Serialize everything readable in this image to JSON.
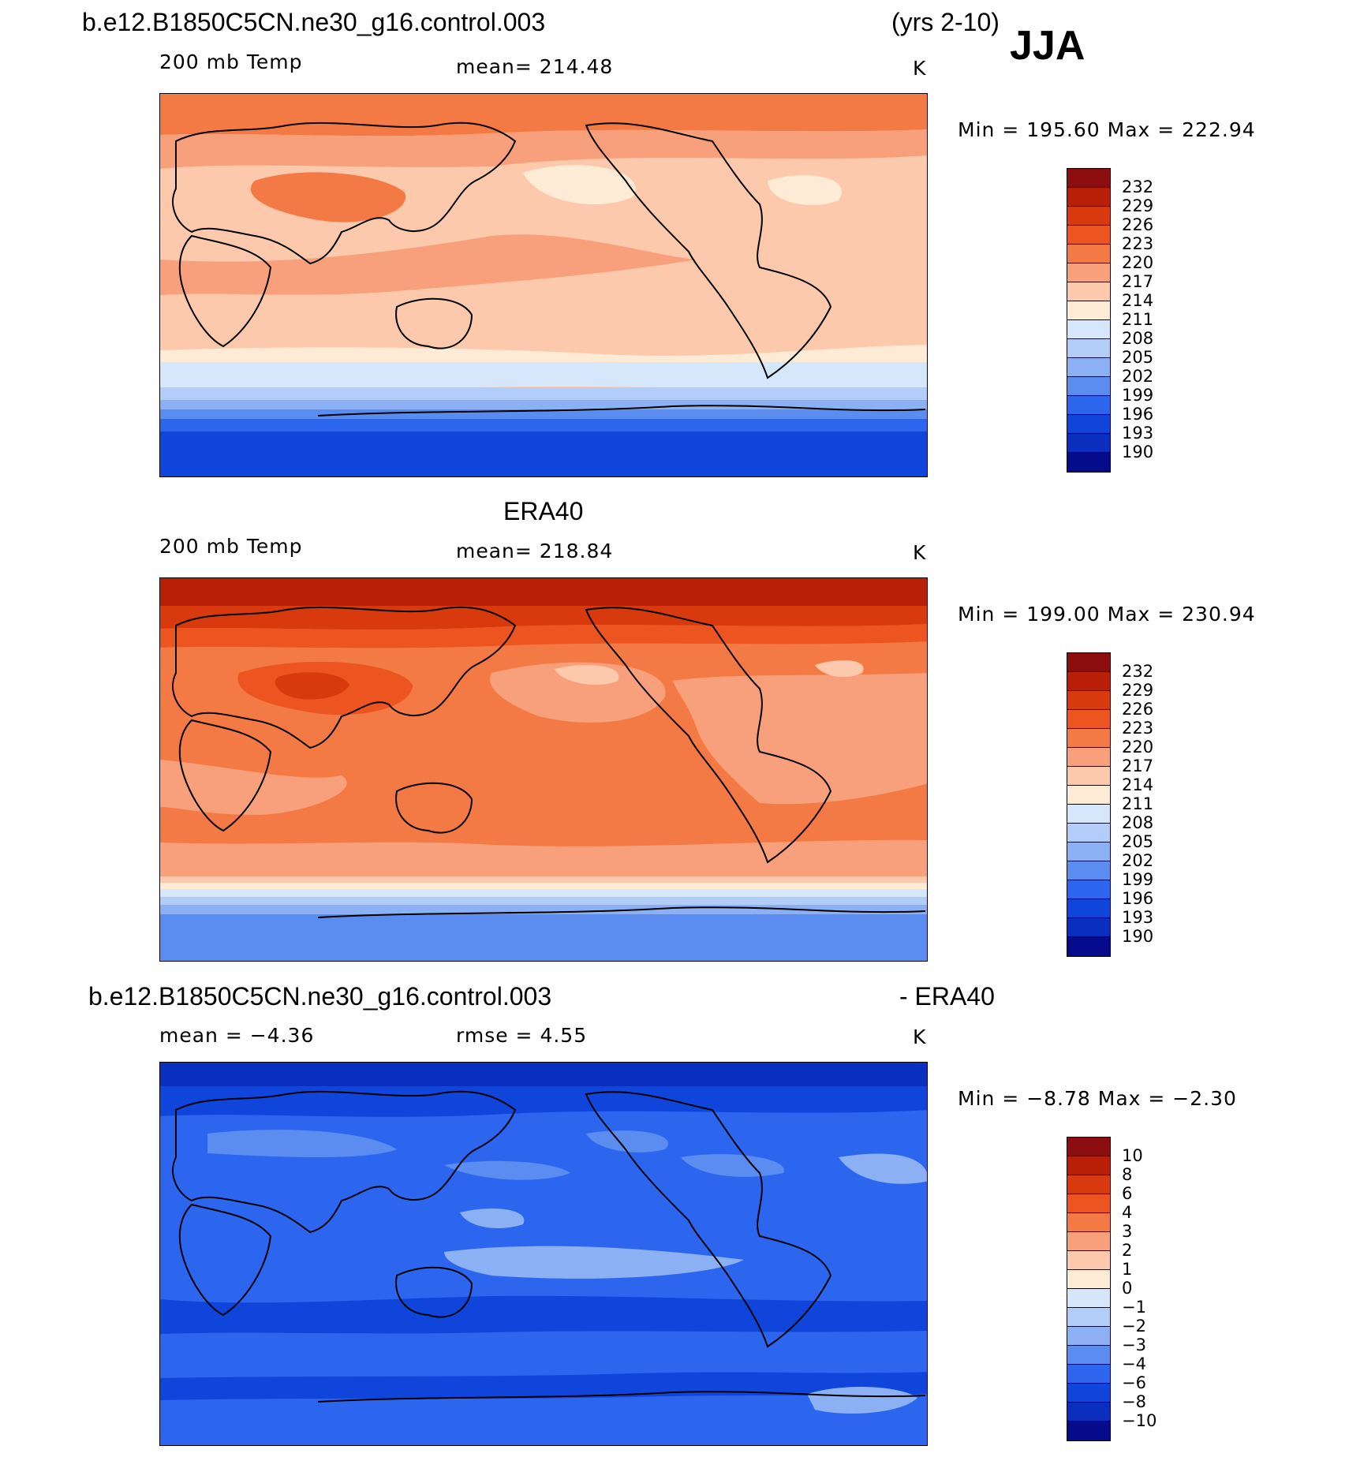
{
  "header": {
    "case_title": "b.e12.B1850C5CN.ne30_g16.control.003",
    "years": "(yrs 2-10)",
    "season": "JJA"
  },
  "panels": [
    {
      "id": "model",
      "top_title": "",
      "subtitle_left": "200 mb Temp",
      "subtitle_center": "mean= 214.48",
      "units": "K",
      "minmax": "Min = 195.60 Max = 222.94",
      "colorbar_labels": [
        "232",
        "229",
        "226",
        "223",
        "220",
        "217",
        "214",
        "211",
        "208",
        "205",
        "202",
        "199",
        "196",
        "193",
        "190"
      ]
    },
    {
      "id": "obs",
      "top_title": "ERA40",
      "subtitle_left": "200 mb Temp",
      "subtitle_center": "mean= 218.84",
      "units": "K",
      "minmax": "Min = 199.00 Max = 230.94",
      "colorbar_labels": [
        "232",
        "229",
        "226",
        "223",
        "220",
        "217",
        "214",
        "211",
        "208",
        "205",
        "202",
        "199",
        "196",
        "193",
        "190"
      ]
    },
    {
      "id": "diff",
      "top_title_left": "b.e12.B1850C5CN.ne30_g16.control.003",
      "top_title_right": "- ERA40",
      "subtitle_left": "mean =   −4.36",
      "subtitle_center": "rmse =    4.55",
      "units": "K",
      "minmax": "Min =  −8.78 Max =  −2.30",
      "colorbar_labels": [
        "10",
        "8",
        "6",
        "4",
        "3",
        "2",
        "1",
        "0",
        "−1",
        "−2",
        "−3",
        "−4",
        "−6",
        "−8",
        "−10"
      ]
    }
  ],
  "colors": {
    "scale": [
      "#8b0d0d",
      "#b81f06",
      "#d83a0d",
      "#ec5420",
      "#f47a45",
      "#f8a07b",
      "#fcc9ad",
      "#fdebd6",
      "#d6e6fb",
      "#b1cdf8",
      "#8bb0f4",
      "#5b8df1",
      "#2d66ee",
      "#1045dc",
      "#0a2ebd",
      "#050b8a"
    ]
  }
}
